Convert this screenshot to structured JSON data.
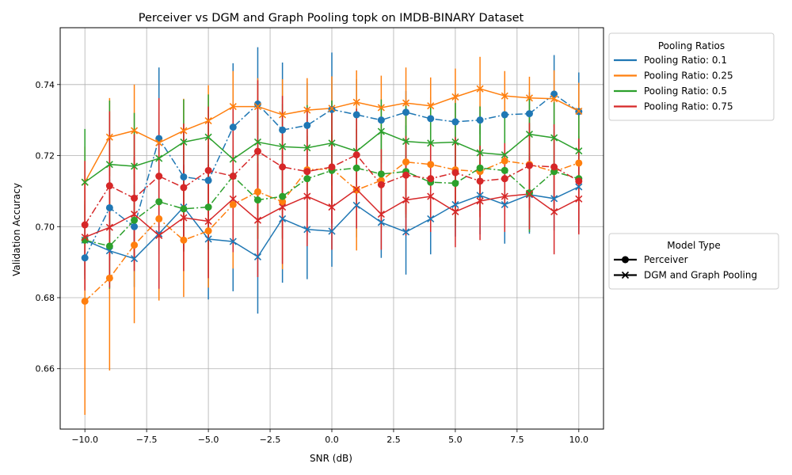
{
  "chart_data": {
    "type": "line",
    "title": "Perceiver vs DGM and Graph Pooling topk on IMDB-BINARY Dataset",
    "xlabel": "SNR (dB)",
    "ylabel": "Validation Accuracy",
    "xlim": [
      -11,
      11
    ],
    "ylim": [
      0.643,
      0.756
    ],
    "x_ticks": [
      -10,
      -7.5,
      -5,
      -2.5,
      0,
      2.5,
      5,
      7.5,
      10
    ],
    "x_tick_labels": [
      "−10.0",
      "−7.5",
      "−5.0",
      "−2.5",
      "0.0",
      "2.5",
      "5.0",
      "7.5",
      "10.0"
    ],
    "y_ticks": [
      0.66,
      0.68,
      0.7,
      0.72,
      0.74
    ],
    "y_tick_labels": [
      "0.66",
      "0.68",
      "0.70",
      "0.72",
      "0.74"
    ],
    "grid": true,
    "x": [
      -10,
      -9,
      -8,
      -7,
      -6,
      -5,
      -4,
      -3,
      -2,
      -1,
      0,
      1,
      2,
      3,
      4,
      5,
      6,
      7,
      8,
      9,
      10
    ],
    "legend_pooling": {
      "title": "Pooling Ratios",
      "placement": "outside-top-right",
      "entries": [
        {
          "label": "Pooling Ratio: 0.1",
          "color": "#1f77b4"
        },
        {
          "label": "Pooling Ratio: 0.25",
          "color": "#ff7f0e"
        },
        {
          "label": "Pooling Ratio: 0.5",
          "color": "#2ca02c"
        },
        {
          "label": "Pooling Ratio: 0.75",
          "color": "#d62728"
        }
      ]
    },
    "legend_model": {
      "title": "Model Type",
      "placement": "outside-middle-right",
      "entries": [
        {
          "label": "Perceiver",
          "marker": "circle"
        },
        {
          "label": "DGM and Graph Pooling",
          "marker": "x"
        }
      ]
    },
    "series": [
      {
        "ratio": "0.1",
        "model": "Perceiver",
        "color": "#1f77b4",
        "marker": "circle",
        "dash": "dashdot",
        "values": [
          0.6912,
          0.7053,
          0.7,
          0.7248,
          0.714,
          0.713,
          0.728,
          0.7345,
          0.7272,
          0.7285,
          0.733,
          0.7315,
          0.73,
          0.7322,
          0.7304,
          0.7295,
          0.73,
          0.7315,
          0.7318,
          0.7373,
          0.7324
        ],
        "err": [
          0.006,
          0.008,
          0.008,
          0.02,
          0.011,
          0.01,
          0.018,
          0.016,
          0.019,
          0.012,
          0.016,
          0.01,
          0.004,
          0.006,
          0.006,
          0.008,
          0.004,
          0.006,
          0.006,
          0.011,
          0.011
        ]
      },
      {
        "ratio": "0.1",
        "model": "DGM and Graph Pooling",
        "color": "#1f77b4",
        "marker": "x",
        "dash": "solid",
        "values": [
          0.6962,
          0.6932,
          0.691,
          0.698,
          0.7055,
          0.6965,
          0.6958,
          0.6915,
          0.7022,
          0.6992,
          0.6987,
          0.706,
          0.7012,
          0.6985,
          0.7022,
          0.7062,
          0.7088,
          0.7062,
          0.709,
          0.7079,
          0.7112
        ],
        "err": [
          0.01,
          0.009,
          0.008,
          0.01,
          0.012,
          0.017,
          0.014,
          0.016,
          0.018,
          0.014,
          0.01,
          0.009,
          0.01,
          0.012,
          0.01,
          0.009,
          0.011,
          0.011,
          0.011,
          0.009,
          0.013
        ]
      },
      {
        "ratio": "0.25",
        "model": "Perceiver",
        "color": "#ff7f0e",
        "marker": "circle",
        "dash": "dashdot",
        "values": [
          0.679,
          0.6855,
          0.6948,
          0.7022,
          0.6962,
          0.6988,
          0.7062,
          0.7098,
          0.707,
          0.716,
          0.7163,
          0.7103,
          0.713,
          0.7182,
          0.7175,
          0.716,
          0.7155,
          0.7185,
          0.7175,
          0.7155,
          0.7179
        ],
        "err": [
          0.032,
          0.026,
          0.022,
          0.023,
          0.016,
          0.016,
          0.018,
          0.013,
          0.019,
          0.011,
          0.01,
          0.017,
          0.014,
          0.014,
          0.013,
          0.013,
          0.013,
          0.012,
          0.013,
          0.012,
          0.012
        ]
      },
      {
        "ratio": "0.25",
        "model": "DGM and Graph Pooling",
        "color": "#ff7f0e",
        "marker": "x",
        "dash": "solid",
        "values": [
          0.7125,
          0.7252,
          0.727,
          0.7236,
          0.727,
          0.7298,
          0.7338,
          0.7338,
          0.7315,
          0.7328,
          0.7333,
          0.735,
          0.7335,
          0.7348,
          0.734,
          0.7365,
          0.7388,
          0.7368,
          0.7362,
          0.736,
          0.7325
        ],
        "err": [
          0.01,
          0.011,
          0.013,
          0.009,
          0.009,
          0.01,
          0.01,
          0.008,
          0.01,
          0.009,
          0.009,
          0.009,
          0.009,
          0.01,
          0.008,
          0.008,
          0.009,
          0.007,
          0.006,
          0.008,
          0.008
        ]
      },
      {
        "ratio": "0.5",
        "model": "Perceiver",
        "color": "#2ca02c",
        "marker": "circle",
        "dash": "dashdot",
        "values": [
          0.6962,
          0.6945,
          0.7018,
          0.707,
          0.705,
          0.7055,
          0.7142,
          0.7075,
          0.7085,
          0.7135,
          0.7158,
          0.7165,
          0.7148,
          0.7155,
          0.7125,
          0.7122,
          0.7165,
          0.7158,
          0.7095,
          0.7155,
          0.7135
        ],
        "err": [
          0.011,
          0.012,
          0.01,
          0.011,
          0.012,
          0.012,
          0.011,
          0.011,
          0.012,
          0.012,
          0.01,
          0.011,
          0.012,
          0.013,
          0.012,
          0.012,
          0.012,
          0.01,
          0.011,
          0.011,
          0.012
        ]
      },
      {
        "ratio": "0.5",
        "model": "DGM and Graph Pooling",
        "color": "#2ca02c",
        "marker": "x",
        "dash": "solid",
        "values": [
          0.7125,
          0.7175,
          0.717,
          0.7192,
          0.7238,
          0.7252,
          0.719,
          0.7238,
          0.7225,
          0.7222,
          0.7235,
          0.7212,
          0.7268,
          0.724,
          0.7235,
          0.7238,
          0.7208,
          0.7202,
          0.726,
          0.725,
          0.7213
        ],
        "err": [
          0.015,
          0.018,
          0.015,
          0.013,
          0.012,
          0.012,
          0.014,
          0.012,
          0.012,
          0.012,
          0.012,
          0.011,
          0.009,
          0.01,
          0.01,
          0.011,
          0.013,
          0.012,
          0.01,
          0.01,
          0.011
        ]
      },
      {
        "ratio": "0.75",
        "model": "Perceiver",
        "color": "#d62728",
        "marker": "circle",
        "dash": "dashdot",
        "values": [
          0.7005,
          0.7115,
          0.708,
          0.7142,
          0.711,
          0.7158,
          0.7142,
          0.7212,
          0.7168,
          0.7155,
          0.7168,
          0.7202,
          0.7118,
          0.7145,
          0.7135,
          0.7152,
          0.7128,
          0.7135,
          0.7172,
          0.7168,
          0.7128
        ],
        "err": [
          0.018,
          0.021,
          0.018,
          0.022,
          0.018,
          0.018,
          0.019,
          0.02,
          0.02,
          0.018,
          0.016,
          0.013,
          0.01,
          0.011,
          0.01,
          0.01,
          0.01,
          0.01,
          0.012,
          0.012,
          0.012
        ]
      },
      {
        "ratio": "0.75",
        "model": "DGM and Graph Pooling",
        "color": "#d62728",
        "marker": "x",
        "dash": "solid",
        "values": [
          0.697,
          0.6998,
          0.7035,
          0.6975,
          0.7025,
          0.7015,
          0.7078,
          0.7018,
          0.7055,
          0.7085,
          0.7055,
          0.7105,
          0.7035,
          0.7075,
          0.7085,
          0.7042,
          0.7072,
          0.7085,
          0.7092,
          0.7042,
          0.7078
        ],
        "err": [
          0.015,
          0.017,
          0.016,
          0.015,
          0.015,
          0.016,
          0.015,
          0.016,
          0.016,
          0.014,
          0.012,
          0.011,
          0.01,
          0.01,
          0.01,
          0.01,
          0.011,
          0.01,
          0.01,
          0.012,
          0.01
        ]
      }
    ]
  }
}
